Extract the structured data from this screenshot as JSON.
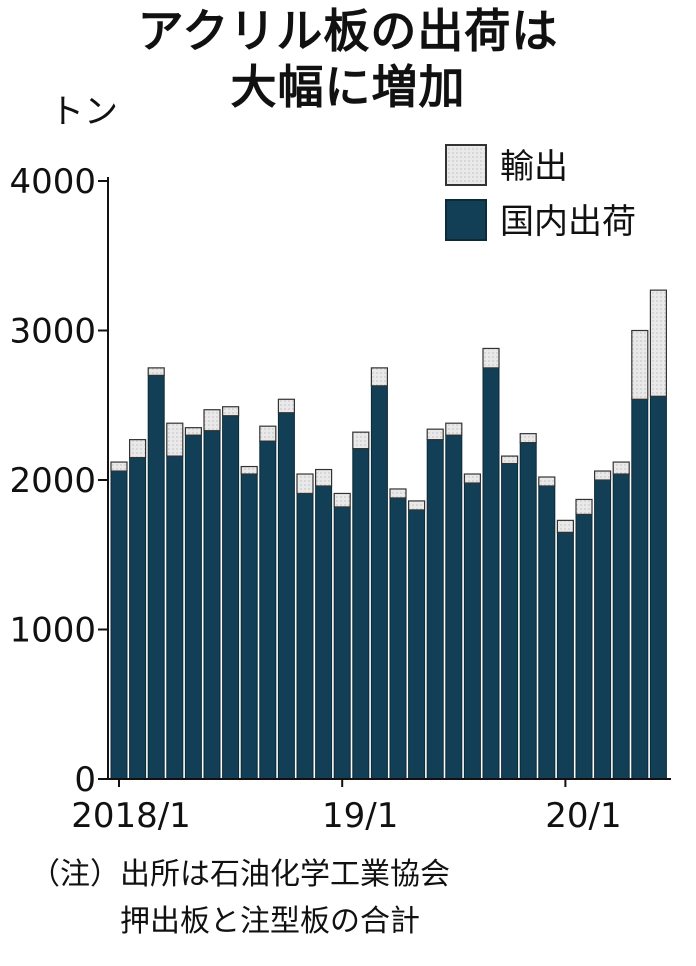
{
  "title_line1": "アクリル板の出荷は",
  "title_line2": "大幅に増加",
  "unit": "トン",
  "note_line1": "（注）出所は石油化学工業協会",
  "note_line2": "押出板と注型板の合計",
  "colors": {
    "domestic": "#123f55",
    "export": "#e9e9e9",
    "axis": "#111111"
  },
  "chart_data": {
    "type": "bar",
    "stacked": true,
    "ylim": [
      0,
      4000
    ],
    "yticks": [
      0,
      1000,
      2000,
      3000,
      4000
    ],
    "xtick_labels": [
      {
        "index": 0,
        "label": "2018/1"
      },
      {
        "index": 12,
        "label": "19/1"
      },
      {
        "index": 24,
        "label": "20/1"
      }
    ],
    "legend_position": "top-right",
    "series": [
      {
        "name": "国内出荷",
        "color_key": "domestic",
        "values": [
          2060,
          2150,
          2700,
          2160,
          2300,
          2330,
          2430,
          2040,
          2260,
          2450,
          1910,
          1960,
          1820,
          2210,
          2630,
          1880,
          1800,
          2270,
          2300,
          1980,
          2750,
          2110,
          2250,
          1960,
          1650,
          1770,
          2000,
          2040,
          2540,
          2560
        ]
      },
      {
        "name": "輸出",
        "color_key": "export",
        "values": [
          60,
          120,
          50,
          220,
          50,
          140,
          60,
          50,
          100,
          90,
          130,
          110,
          90,
          110,
          120,
          60,
          60,
          70,
          80,
          60,
          130,
          50,
          60,
          60,
          80,
          100,
          60,
          80,
          460,
          710
        ]
      }
    ]
  }
}
